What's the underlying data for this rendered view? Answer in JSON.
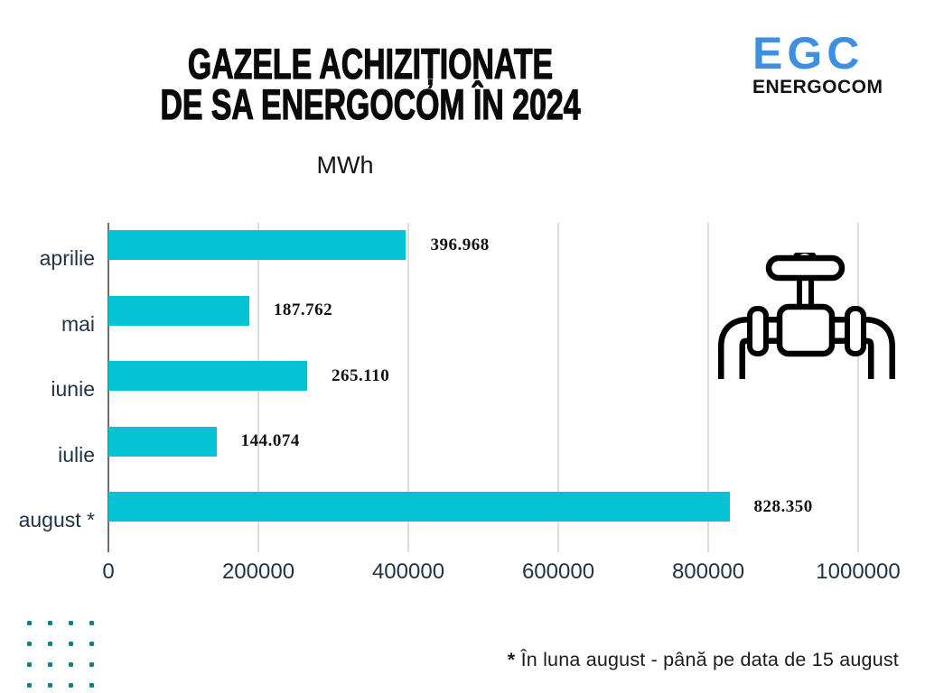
{
  "title": {
    "line1": "GAZELE ACHIZIȚIONATE",
    "line2": "DE SA ENERGOCOM ÎN 2024"
  },
  "unit_label": "MWh",
  "logo": {
    "acronym": "EGC",
    "name": "ENERGOCOM",
    "accent_color": "#3d8fe2"
  },
  "footnote": {
    "marker": "*",
    "text": "În luna august - până pe data de 15 august"
  },
  "colors": {
    "bar": "#06c3d4",
    "label": "#1f3347",
    "value_text": "#111111",
    "axis_line": "#6f6f6f",
    "gridline": "#dcdcdc",
    "dots": "#0f7f7f"
  },
  "chart_data": {
    "type": "bar",
    "orientation": "horizontal",
    "title": "GAZELE ACHIZIȚIONATE DE SA ENERGOCOM ÎN 2024",
    "unit": "MWh",
    "categories": [
      "aprilie",
      "mai",
      "iunie",
      "iulie",
      "august *"
    ],
    "values": [
      396968,
      187762,
      265110,
      144074,
      828350
    ],
    "value_labels": [
      "396.968",
      "187.762",
      "265.110",
      "144.074",
      "828.350"
    ],
    "xlim": [
      0,
      1000000
    ],
    "x_ticks": [
      0,
      200000,
      400000,
      600000,
      800000,
      1000000
    ],
    "x_tick_labels": [
      "0",
      "200000",
      "400000",
      "600000",
      "800000",
      "1000000"
    ],
    "grid": "vertical",
    "legend": "none",
    "annotation": "* În luna august - până pe data de 15 august"
  }
}
